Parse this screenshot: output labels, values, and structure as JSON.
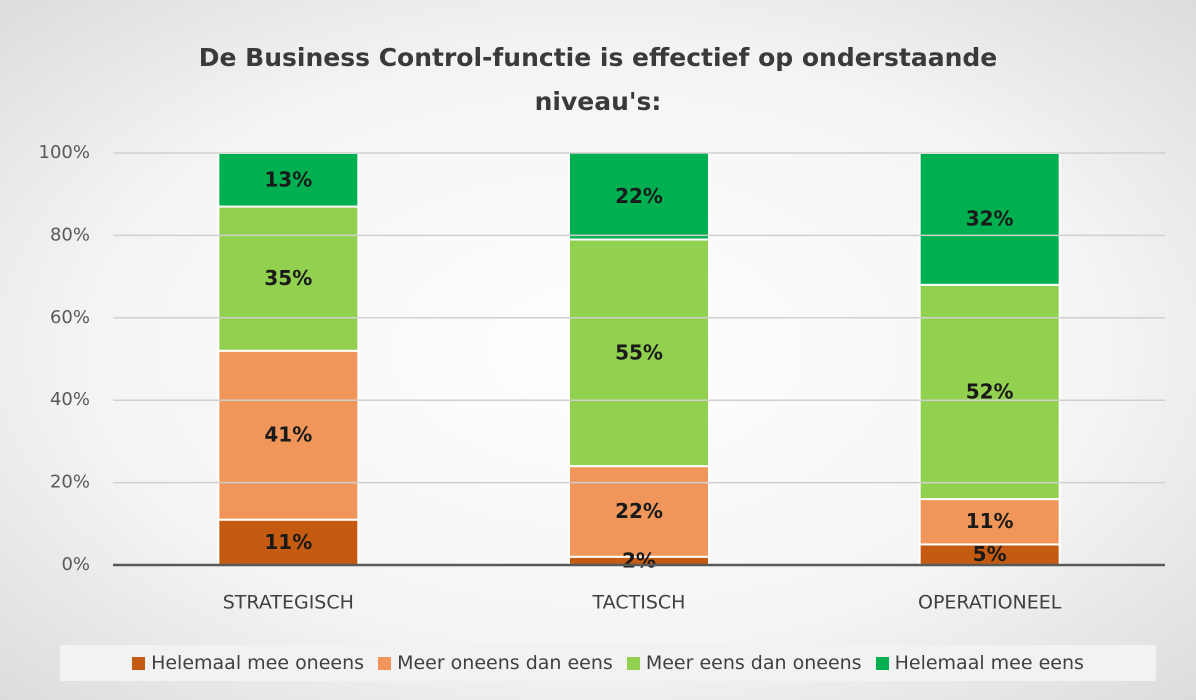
{
  "chart_data": {
    "type": "stacked_bar",
    "title": "De Business Control-functie is effectief op onderstaande niveau's:",
    "categories": [
      "STRATEGISCH",
      "TACTISCH",
      "OPERATIONEEL"
    ],
    "series": [
      {
        "name": "Helemaal mee oneens",
        "color": "#c55a11",
        "values": [
          11,
          2,
          5
        ],
        "value_labels": [
          "11%",
          "2%",
          "5%"
        ]
      },
      {
        "name": "Meer oneens dan eens",
        "color": "#f0965a",
        "values": [
          41,
          22,
          11
        ],
        "value_labels": [
          "41%",
          "22%",
          "11%"
        ]
      },
      {
        "name": "Meer eens dan oneens",
        "color": "#92d050",
        "values": [
          35,
          55,
          52
        ],
        "value_labels": [
          "35%",
          "55%",
          "52%"
        ]
      },
      {
        "name": "Helemaal mee eens",
        "color": "#00b050",
        "values": [
          13,
          22,
          32
        ],
        "value_labels": [
          "13%",
          "22%",
          "32%"
        ]
      }
    ],
    "ylim": [
      0,
      100
    ],
    "yticks": [
      {
        "value": 0,
        "label": "0%"
      },
      {
        "value": 20,
        "label": "20%"
      },
      {
        "value": 40,
        "label": "40%"
      },
      {
        "value": 60,
        "label": "60%"
      },
      {
        "value": 80,
        "label": "80%"
      },
      {
        "value": 100,
        "label": "100%"
      }
    ],
    "grid": true,
    "legend": "bottom"
  }
}
